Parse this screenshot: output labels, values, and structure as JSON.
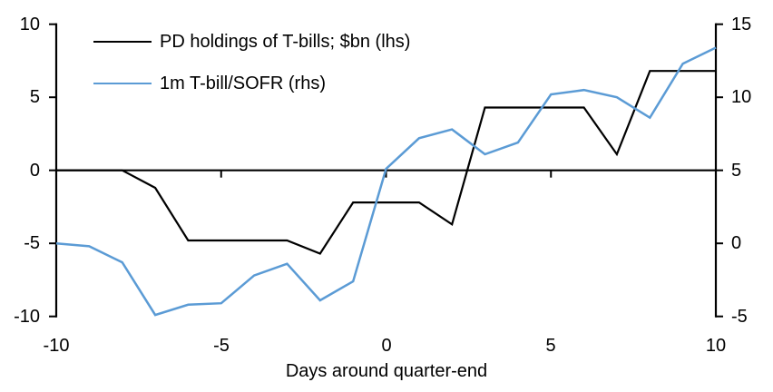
{
  "chart_data": {
    "type": "line",
    "title": "",
    "xlabel": "Days around quarter-end",
    "x": [
      -10,
      -9,
      -8,
      -7,
      -6,
      -5,
      -4,
      -3,
      -2,
      -1,
      0,
      1,
      2,
      3,
      4,
      5,
      6,
      7,
      8,
      9,
      10
    ],
    "x_ticks": [
      -10,
      -5,
      0,
      5,
      10
    ],
    "left_axis": {
      "min": -10,
      "max": 10,
      "ticks": [
        10,
        5,
        0,
        -5,
        -10
      ]
    },
    "right_axis": {
      "min": -5,
      "max": 15,
      "ticks": [
        15,
        10,
        5,
        0,
        -5
      ]
    },
    "grid": false,
    "zero_line": true,
    "legend_position": "top-left",
    "series": [
      {
        "name": "PD holdings of T-bills; $bn (lhs)",
        "axis": "left",
        "color": "#000000",
        "values": [
          0,
          0,
          0,
          -1.2,
          -4.8,
          -4.8,
          -4.8,
          -4.8,
          -5.7,
          -2.2,
          -2.2,
          -2.2,
          -3.7,
          4.3,
          4.3,
          4.3,
          4.3,
          1.1,
          6.8,
          6.8,
          6.8
        ]
      },
      {
        "name": "1m T-bill/SOFR (rhs)",
        "axis": "right",
        "color": "#5B9BD5",
        "values": [
          0,
          -0.2,
          -1.3,
          -4.9,
          -4.2,
          -4.1,
          -2.2,
          -1.4,
          -3.9,
          -2.6,
          5.1,
          7.2,
          7.8,
          6.1,
          6.9,
          10.2,
          10.5,
          10,
          8.6,
          12.3,
          13.4
        ]
      }
    ],
    "colors": {
      "axis": "#000000",
      "background": "#FFFFFF"
    }
  }
}
